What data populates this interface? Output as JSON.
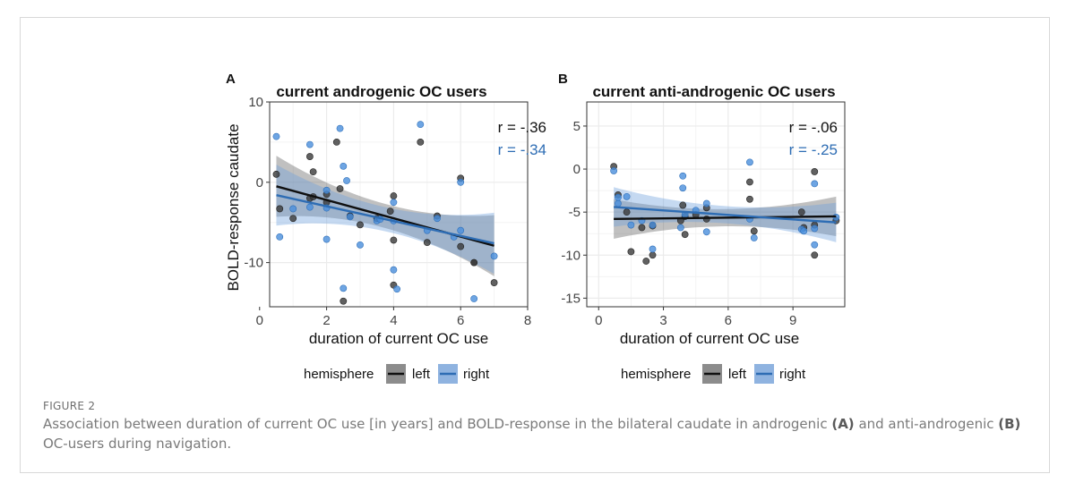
{
  "figure": {
    "label": "FIGURE 2",
    "caption": {
      "part1": "Association between duration of current OC use [in years] and BOLD-response in the bilateral caudate in androgenic ",
      "a": "(A)",
      "part2": " and anti-androgenic ",
      "b": "(B)",
      "part3": " OC-users during navigation."
    }
  },
  "legend": {
    "title": "hemisphere",
    "entries": [
      {
        "name": "left",
        "color": "#1a1a1a",
        "fill": "#8c8c8c"
      },
      {
        "name": "right",
        "color": "#2e6db4",
        "fill": "#8fb3e0"
      }
    ]
  },
  "colors": {
    "left_point": "#3a3a3a",
    "right_point": "#4a8fdc",
    "panel_bg": "#ffffff",
    "grid": "#ebebeb"
  },
  "chart_data": [
    {
      "panel": "A",
      "type": "scatter",
      "title": "current androgenic OC users",
      "xlabel": "duration of current OC use",
      "ylabel": "BOLD-response caudate",
      "xlim": [
        0.3,
        8.0
      ],
      "ylim": [
        -15.5,
        10.0
      ],
      "xticks": [
        0,
        2,
        4,
        6,
        8
      ],
      "yticks": [
        10,
        0,
        -10
      ],
      "grid": true,
      "annotations": [
        {
          "text": "r = -.36",
          "series": "left"
        },
        {
          "text": "r = -.34",
          "series": "right"
        }
      ],
      "series": [
        {
          "name": "left",
          "points": [
            [
              0.5,
              1.0
            ],
            [
              0.6,
              -3.3
            ],
            [
              1.0,
              -4.5
            ],
            [
              1.5,
              -2.0
            ],
            [
              1.5,
              3.2
            ],
            [
              1.6,
              1.3
            ],
            [
              1.6,
              -1.8
            ],
            [
              2.0,
              -1.5
            ],
            [
              2.0,
              -2.5
            ],
            [
              2.3,
              5.0
            ],
            [
              2.4,
              -0.8
            ],
            [
              2.5,
              -14.8
            ],
            [
              2.7,
              -4.2
            ],
            [
              3.0,
              -5.3
            ],
            [
              3.5,
              -4.5
            ],
            [
              4.0,
              -1.7
            ],
            [
              4.0,
              -12.8
            ],
            [
              4.0,
              -7.2
            ],
            [
              4.8,
              5.0
            ],
            [
              5.0,
              -7.5
            ],
            [
              5.3,
              -4.2
            ],
            [
              6.0,
              -8.0
            ],
            [
              6.0,
              0.5
            ],
            [
              6.4,
              -10.0
            ],
            [
              6.4,
              -10.0
            ],
            [
              7.0,
              -12.5
            ],
            [
              3.9,
              -3.6
            ]
          ],
          "fit": {
            "x": [
              0.5,
              7.0
            ],
            "y": [
              -0.5,
              -7.9
            ]
          }
        },
        {
          "name": "right",
          "points": [
            [
              0.5,
              5.7
            ],
            [
              0.6,
              -6.8
            ],
            [
              1.0,
              -3.3
            ],
            [
              1.5,
              4.7
            ],
            [
              1.5,
              -3.1
            ],
            [
              2.0,
              -1.0
            ],
            [
              2.0,
              -7.1
            ],
            [
              2.0,
              -3.2
            ],
            [
              2.4,
              6.7
            ],
            [
              2.5,
              -13.2
            ],
            [
              2.5,
              2.0
            ],
            [
              2.6,
              0.2
            ],
            [
              2.7,
              -4.3
            ],
            [
              3.0,
              -7.8
            ],
            [
              3.5,
              -4.8
            ],
            [
              4.0,
              -2.5
            ],
            [
              4.0,
              -4.8
            ],
            [
              4.0,
              -10.9
            ],
            [
              4.1,
              -13.3
            ],
            [
              4.8,
              7.2
            ],
            [
              5.0,
              -6.0
            ],
            [
              5.3,
              -4.5
            ],
            [
              5.8,
              -6.8
            ],
            [
              6.0,
              -6.0
            ],
            [
              6.0,
              0.0
            ],
            [
              6.4,
              -14.5
            ],
            [
              7.0,
              -9.2
            ],
            [
              3.6,
              -4.6
            ]
          ],
          "fit": {
            "x": [
              0.5,
              7.0
            ],
            "y": [
              -1.6,
              -7.6
            ]
          }
        }
      ]
    },
    {
      "panel": "B",
      "type": "scatter",
      "title": "current anti-androgenic OC users",
      "xlabel": "duration of current OC use",
      "ylabel": "",
      "xlim": [
        -0.55,
        11.4
      ],
      "ylim": [
        -16.0,
        7.8
      ],
      "xticks": [
        0,
        3,
        6,
        9
      ],
      "yticks": [
        5,
        0,
        -5,
        -10,
        -15
      ],
      "grid": true,
      "annotations": [
        {
          "text": "r = -.06",
          "series": "left"
        },
        {
          "text": "r = -.25",
          "series": "right"
        }
      ],
      "series": [
        {
          "name": "left",
          "points": [
            [
              0.7,
              0.3
            ],
            [
              0.9,
              -3.0
            ],
            [
              1.3,
              -5.0
            ],
            [
              1.5,
              -9.6
            ],
            [
              2.0,
              -6.8
            ],
            [
              2.2,
              -10.7
            ],
            [
              2.5,
              -10.0
            ],
            [
              2.5,
              -6.6
            ],
            [
              3.8,
              -6.0
            ],
            [
              3.9,
              -4.2
            ],
            [
              4.0,
              -7.6
            ],
            [
              4.0,
              -5.5
            ],
            [
              4.5,
              -5.3
            ],
            [
              5.0,
              -4.5
            ],
            [
              5.0,
              -5.8
            ],
            [
              7.0,
              -1.5
            ],
            [
              7.0,
              -3.5
            ],
            [
              7.2,
              -7.2
            ],
            [
              9.4,
              -5.0
            ],
            [
              9.5,
              -6.8
            ],
            [
              10.0,
              -0.3
            ],
            [
              10.0,
              -10.0
            ],
            [
              10.0,
              -6.5
            ],
            [
              11.0,
              -6.0
            ]
          ],
          "fit": {
            "x": [
              0.7,
              11.0
            ],
            "y": [
              -5.8,
              -5.5
            ]
          }
        },
        {
          "name": "right",
          "points": [
            [
              0.7,
              -0.2
            ],
            [
              0.9,
              -3.3
            ],
            [
              0.9,
              -4.0
            ],
            [
              1.3,
              -3.2
            ],
            [
              1.5,
              -6.5
            ],
            [
              2.0,
              -6.0
            ],
            [
              2.5,
              -9.3
            ],
            [
              2.5,
              -6.5
            ],
            [
              3.8,
              -6.8
            ],
            [
              3.9,
              -2.2
            ],
            [
              3.9,
              -0.8
            ],
            [
              4.0,
              -5.3
            ],
            [
              4.5,
              -4.8
            ],
            [
              5.0,
              -7.3
            ],
            [
              5.0,
              -4.0
            ],
            [
              7.0,
              0.8
            ],
            [
              7.0,
              -5.8
            ],
            [
              7.2,
              -8.0
            ],
            [
              9.4,
              -7.0
            ],
            [
              9.5,
              -7.2
            ],
            [
              10.0,
              -1.7
            ],
            [
              10.0,
              -8.8
            ],
            [
              10.0,
              -6.9
            ],
            [
              11.0,
              -5.6
            ]
          ],
          "fit": {
            "x": [
              0.7,
              11.0
            ],
            "y": [
              -4.4,
              -6.2
            ]
          }
        }
      ]
    }
  ]
}
